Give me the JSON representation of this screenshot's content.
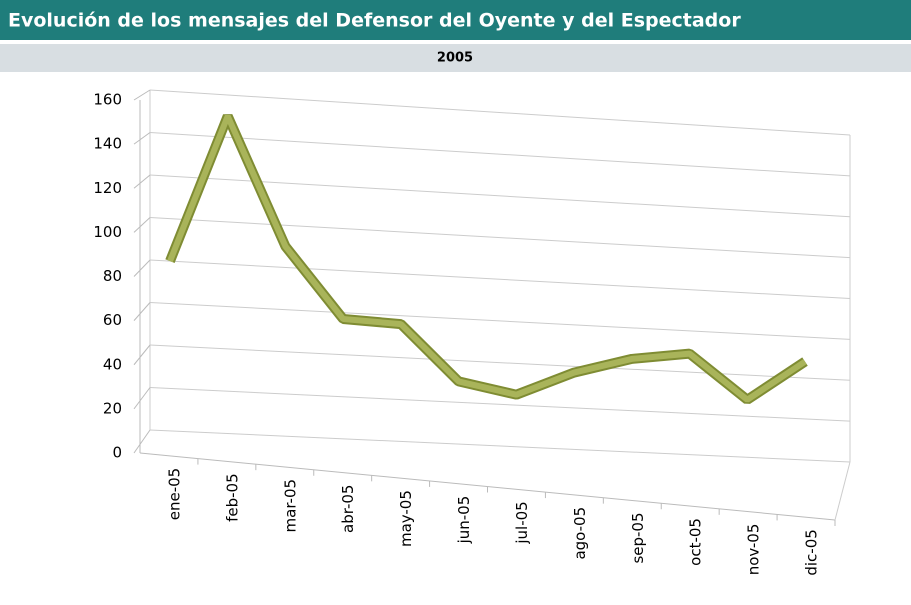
{
  "chart_data": {
    "type": "line",
    "title": "Evolución de los mensajes del Defensor del Oyente y del Espectador",
    "subtitle": "2005",
    "categories": [
      "ene-05",
      "feb-05",
      "mar-05",
      "abr-05",
      "may-05",
      "jun-05",
      "jul-05",
      "ago-05",
      "sep-05",
      "oct-05",
      "nov-05",
      "dic-05"
    ],
    "values": [
      80,
      150,
      90,
      57,
      56,
      30,
      25,
      37,
      45,
      49,
      28,
      48
    ],
    "color": "#a9b45a",
    "ylim": [
      0,
      160
    ],
    "yticks": [
      0,
      20,
      40,
      60,
      80,
      100,
      120,
      140,
      160
    ],
    "grid": true
  }
}
